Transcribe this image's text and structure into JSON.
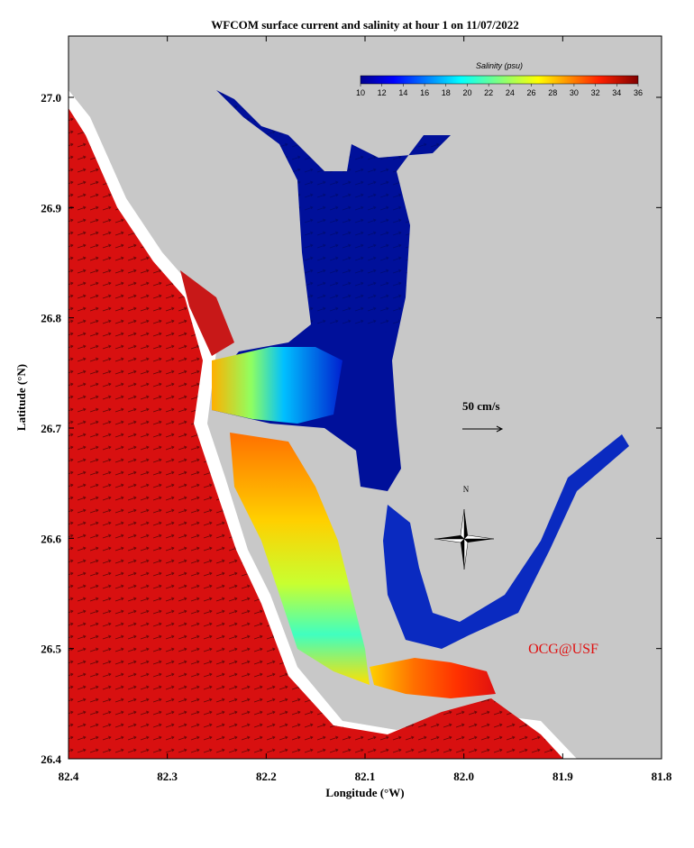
{
  "title": "WFCOM surface current and salinity at hour 1 on 11/07/2022",
  "x_axis": {
    "label": "Longitude (°W)",
    "ticks": [
      "82.4",
      "82.3",
      "82.2",
      "82.1",
      "82.0",
      "81.9",
      "81.8"
    ]
  },
  "y_axis": {
    "label": "Latitude (°N)",
    "ticks": [
      "27.0",
      "26.9",
      "26.8",
      "26.7",
      "26.6",
      "26.5",
      "26.4"
    ]
  },
  "colorbar": {
    "title": "Salinity (psu)",
    "ticks": [
      "10",
      "12",
      "14",
      "16",
      "18",
      "20",
      "22",
      "24",
      "26",
      "28",
      "30",
      "32",
      "34",
      "36"
    ]
  },
  "scale_arrow": "50 cm/s",
  "compass": "N",
  "credit": "OCG@USF"
}
